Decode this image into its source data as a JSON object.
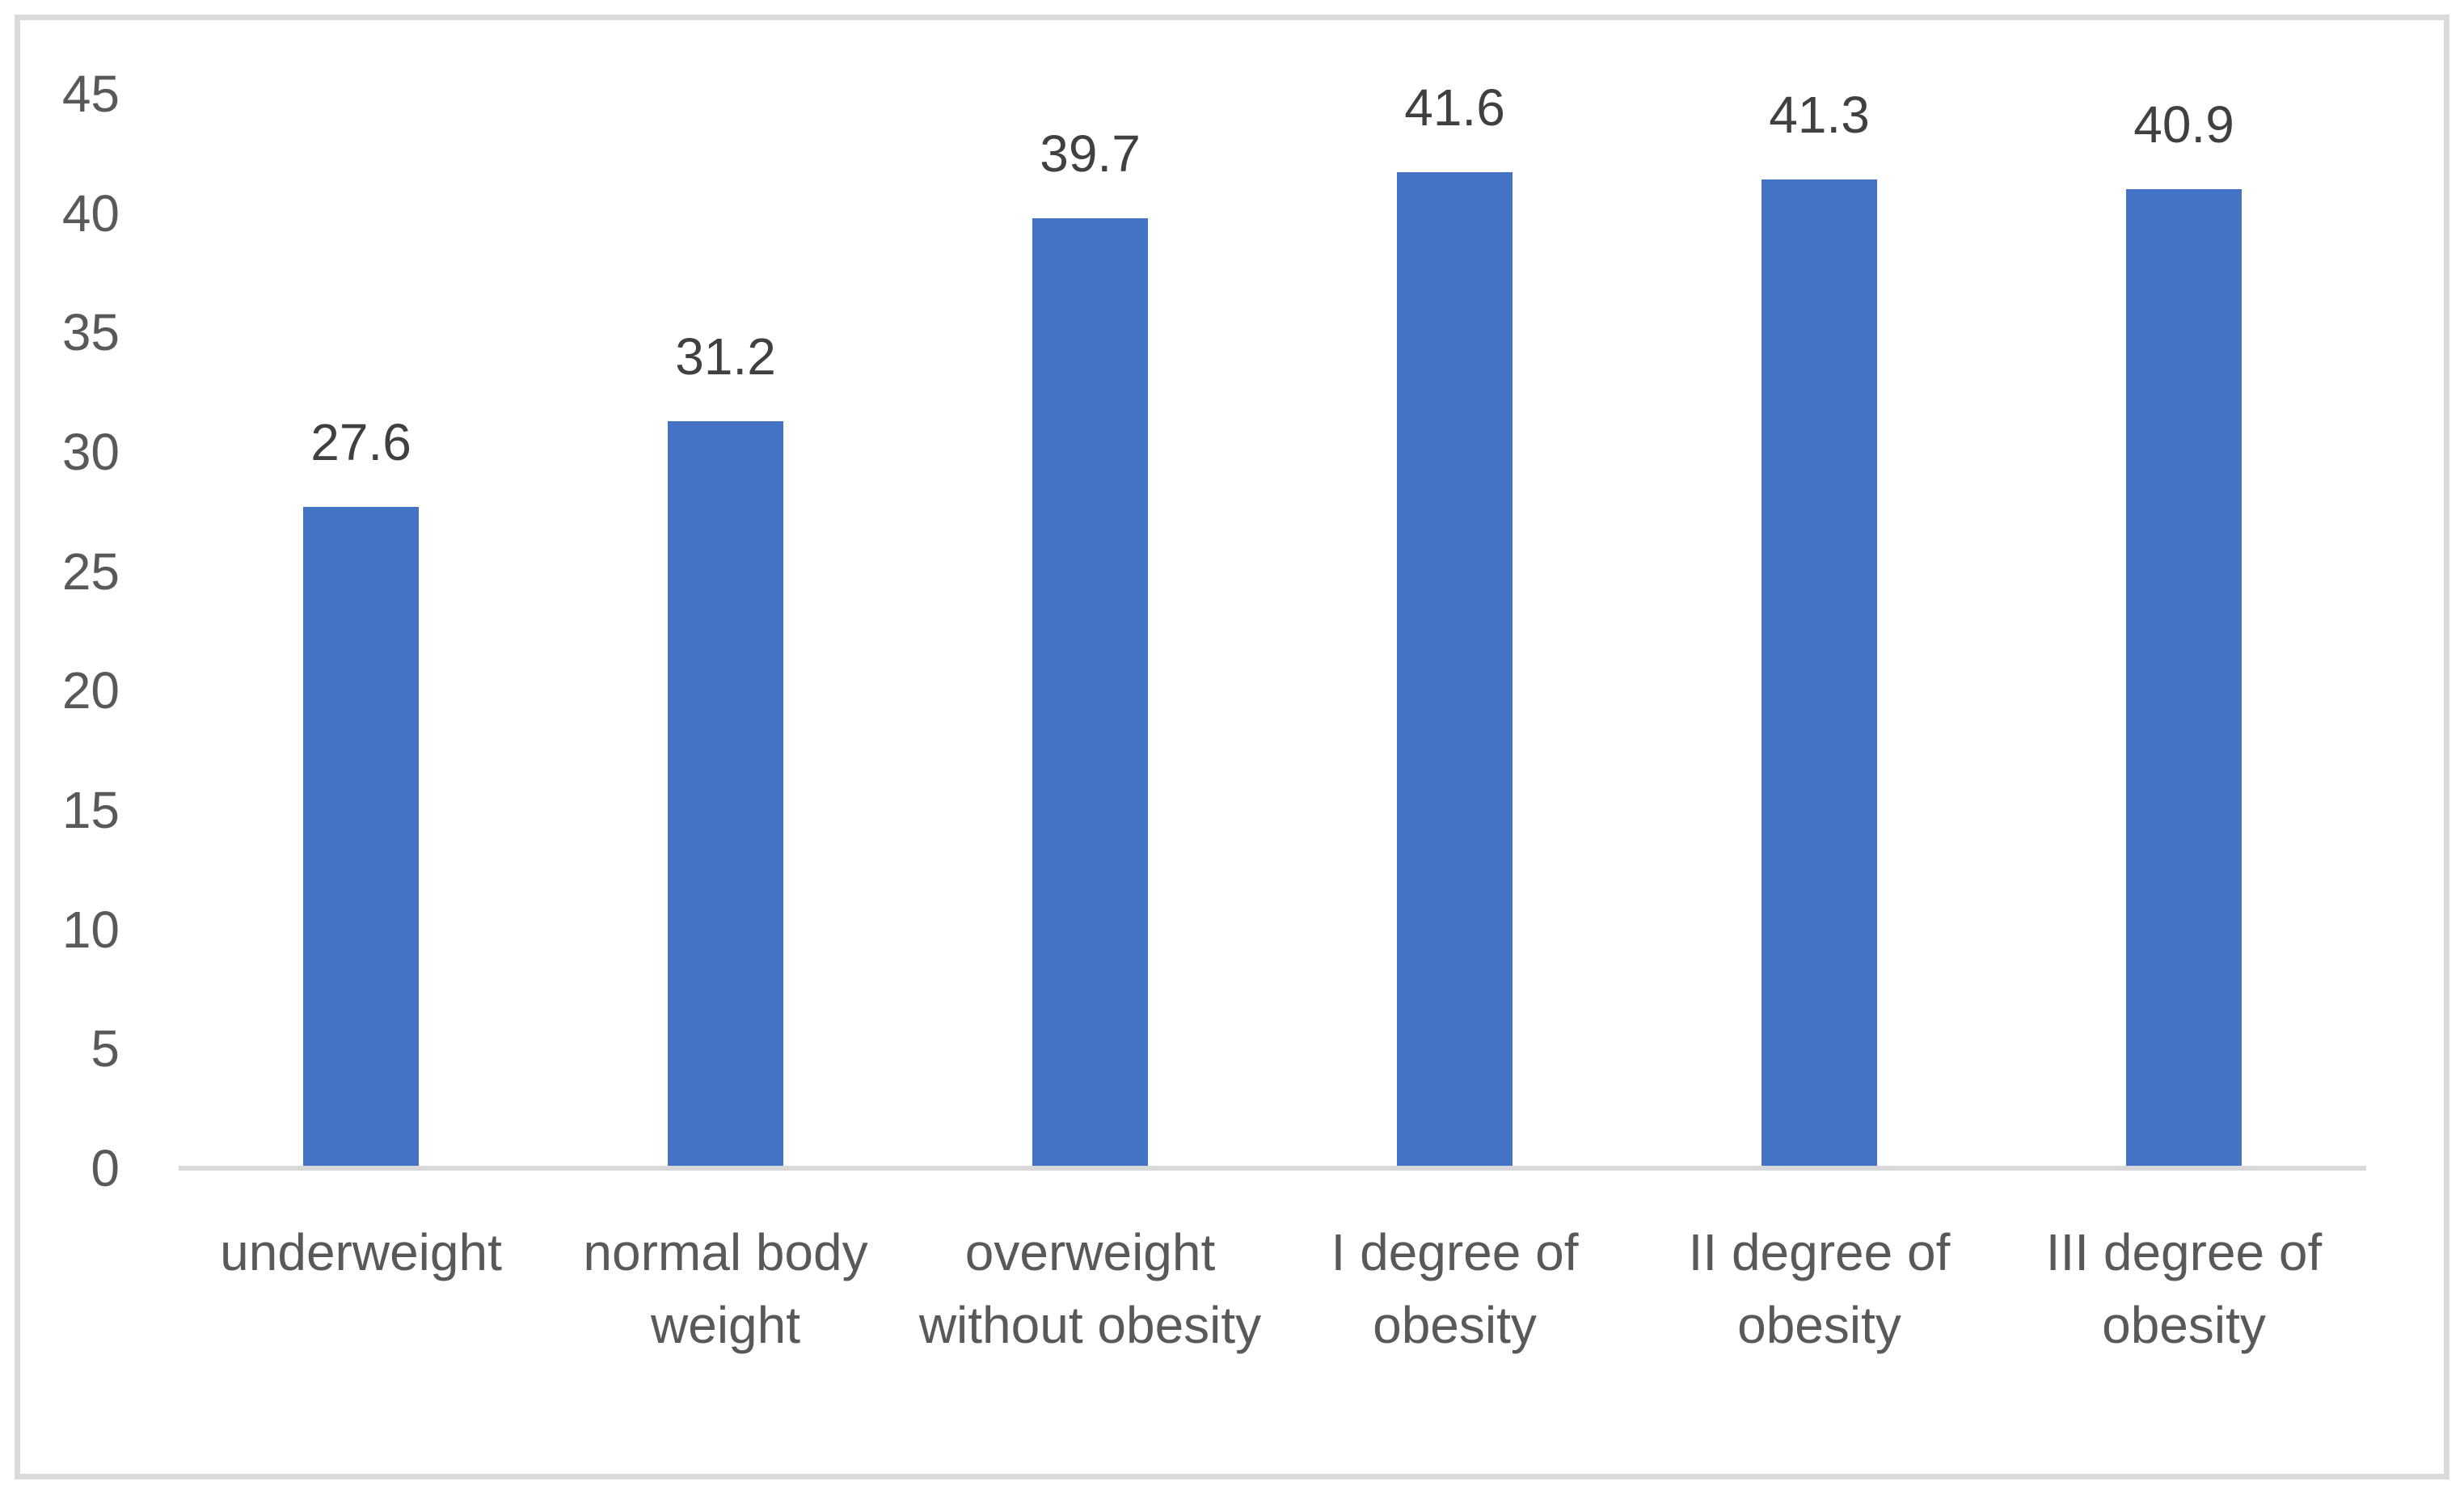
{
  "chart_data": {
    "type": "bar",
    "title": "",
    "xlabel": "",
    "ylabel": "",
    "categories": [
      "underweight",
      "normal body weight",
      "overweight without obesity",
      "I degree of obesity",
      "II degree of obesity",
      "III degree of obesity"
    ],
    "values": [
      27.6,
      31.2,
      39.7,
      41.6,
      41.3,
      40.9
    ],
    "data_labels": [
      "27.6",
      "31.2",
      "39.7",
      "41.6",
      "41.3",
      "40.9"
    ],
    "y_ticks": [
      0,
      5,
      10,
      15,
      20,
      25,
      30,
      35,
      40,
      45
    ],
    "ylim": [
      0,
      45
    ],
    "grid": "off",
    "legend": "none",
    "colors": {
      "bar_fill": "#4472C4",
      "axis_line": "#D9D9D9",
      "frame_border": "#D9D9D9",
      "tick_label_text": "#595959",
      "category_label_text": "#595959",
      "data_label_text": "#404040"
    }
  }
}
